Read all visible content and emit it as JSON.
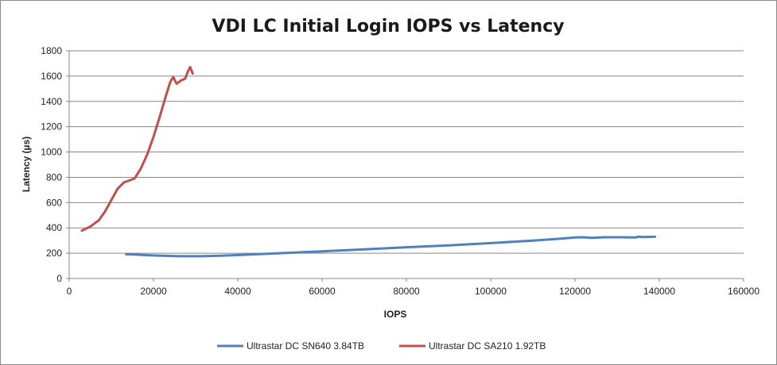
{
  "chart_data": {
    "type": "line",
    "title": "VDI LC Initial Login IOPS vs Latency",
    "xlabel": "IOPS",
    "ylabel": "Latency (µs)",
    "xlim": [
      0,
      160000
    ],
    "ylim": [
      0,
      1800
    ],
    "xticks": [
      0,
      20000,
      40000,
      60000,
      80000,
      100000,
      120000,
      140000,
      160000
    ],
    "yticks": [
      0,
      200,
      400,
      600,
      800,
      1000,
      1200,
      1400,
      1600,
      1800
    ],
    "grid": "horizontal",
    "legend_position": "bottom",
    "series": [
      {
        "name": "Ultrastar DC SN640 3.84TB",
        "color": "#4f81bd",
        "points": [
          [
            13500,
            192
          ],
          [
            16000,
            189
          ],
          [
            19000,
            184
          ],
          [
            22000,
            180
          ],
          [
            26000,
            176
          ],
          [
            31000,
            176
          ],
          [
            36000,
            180
          ],
          [
            42000,
            188
          ],
          [
            50000,
            200
          ],
          [
            60000,
            215
          ],
          [
            70000,
            230
          ],
          [
            80000,
            247
          ],
          [
            90000,
            262
          ],
          [
            100000,
            280
          ],
          [
            110000,
            300
          ],
          [
            117000,
            316
          ],
          [
            120000,
            324
          ],
          [
            122000,
            326
          ],
          [
            124000,
            322
          ],
          [
            127000,
            326
          ],
          [
            131000,
            326
          ],
          [
            134500,
            324
          ],
          [
            135000,
            331
          ],
          [
            136000,
            328
          ],
          [
            139000,
            330
          ]
        ]
      },
      {
        "name": "Ultrastar DC SA210 1.92TB",
        "color": "#c0504d",
        "points": [
          [
            3000,
            378
          ],
          [
            5000,
            410
          ],
          [
            7000,
            460
          ],
          [
            8500,
            530
          ],
          [
            10000,
            620
          ],
          [
            11500,
            710
          ],
          [
            13000,
            760
          ],
          [
            14500,
            778
          ],
          [
            15500,
            790
          ],
          [
            17000,
            870
          ],
          [
            18500,
            980
          ],
          [
            20000,
            1120
          ],
          [
            21500,
            1280
          ],
          [
            23000,
            1450
          ],
          [
            24000,
            1555
          ],
          [
            24700,
            1592
          ],
          [
            25500,
            1540
          ],
          [
            26500,
            1565
          ],
          [
            27500,
            1580
          ],
          [
            28200,
            1640
          ],
          [
            28700,
            1672
          ],
          [
            29300,
            1620
          ]
        ]
      }
    ]
  }
}
